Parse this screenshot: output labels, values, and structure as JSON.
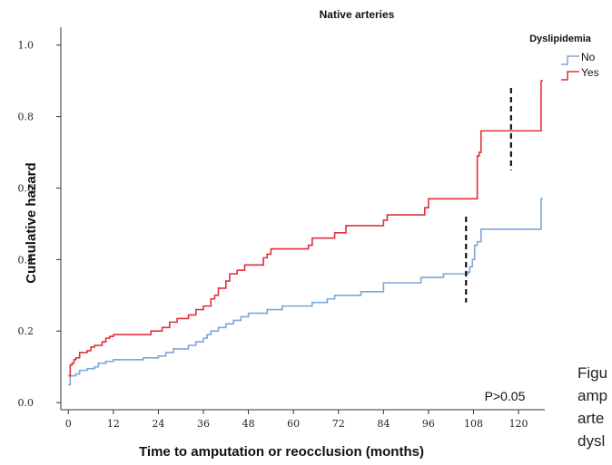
{
  "chart_data": {
    "type": "line",
    "title": "Native arteries",
    "xlabel": "Time to amputation or reocclusion (months)",
    "ylabel": "Cumulative hazard",
    "xlim": [
      -2,
      127
    ],
    "ylim": [
      -0.02,
      1.05
    ],
    "x_ticks": [
      0,
      12,
      24,
      36,
      48,
      60,
      72,
      84,
      96,
      108,
      120
    ],
    "y_ticks": [
      0.0,
      0.2,
      0.4,
      0.6,
      0.8,
      1.0
    ],
    "y_tick_labels": [
      "0.0",
      "0.2",
      "0.4",
      "0.6",
      "0.8",
      "1.0"
    ],
    "legend": {
      "title": "Dyslipidemia",
      "position": "top-right"
    },
    "annotation": "P>0.05",
    "grid": false,
    "series": [
      {
        "name": "No",
        "color": "#7ba7d9",
        "points": [
          [
            0,
            0.05
          ],
          [
            0.5,
            0.075
          ],
          [
            2,
            0.08
          ],
          [
            3,
            0.09
          ],
          [
            5,
            0.095
          ],
          [
            7,
            0.1
          ],
          [
            8,
            0.11
          ],
          [
            10,
            0.115
          ],
          [
            12,
            0.12
          ],
          [
            20,
            0.125
          ],
          [
            24,
            0.13
          ],
          [
            26,
            0.14
          ],
          [
            28,
            0.15
          ],
          [
            32,
            0.16
          ],
          [
            34,
            0.17
          ],
          [
            36,
            0.18
          ],
          [
            37,
            0.19
          ],
          [
            38,
            0.2
          ],
          [
            40,
            0.21
          ],
          [
            42,
            0.22
          ],
          [
            44,
            0.23
          ],
          [
            46,
            0.24
          ],
          [
            48,
            0.25
          ],
          [
            53,
            0.26
          ],
          [
            57,
            0.27
          ],
          [
            65,
            0.28
          ],
          [
            69,
            0.29
          ],
          [
            71,
            0.3
          ],
          [
            78,
            0.31
          ],
          [
            84,
            0.335
          ],
          [
            94,
            0.35
          ],
          [
            100,
            0.36
          ],
          [
            106.5,
            0.365
          ],
          [
            107,
            0.38
          ],
          [
            107.7,
            0.4
          ],
          [
            108.3,
            0.44
          ],
          [
            109,
            0.45
          ],
          [
            110,
            0.485
          ],
          [
            126,
            0.57
          ],
          [
            126.5,
            0.57
          ]
        ]
      },
      {
        "name": "Yes",
        "color": "#e0303a",
        "points": [
          [
            0,
            0.075
          ],
          [
            0.5,
            0.105
          ],
          [
            1,
            0.11
          ],
          [
            1.5,
            0.12
          ],
          [
            2,
            0.125
          ],
          [
            3,
            0.14
          ],
          [
            5,
            0.145
          ],
          [
            6,
            0.155
          ],
          [
            7,
            0.16
          ],
          [
            9,
            0.17
          ],
          [
            10,
            0.18
          ],
          [
            11,
            0.185
          ],
          [
            12,
            0.19
          ],
          [
            22,
            0.2
          ],
          [
            25,
            0.21
          ],
          [
            27,
            0.225
          ],
          [
            29,
            0.235
          ],
          [
            32,
            0.245
          ],
          [
            34,
            0.26
          ],
          [
            36,
            0.27
          ],
          [
            38,
            0.29
          ],
          [
            39,
            0.3
          ],
          [
            40,
            0.32
          ],
          [
            42,
            0.34
          ],
          [
            43,
            0.36
          ],
          [
            45,
            0.37
          ],
          [
            47,
            0.385
          ],
          [
            52,
            0.405
          ],
          [
            53,
            0.415
          ],
          [
            54,
            0.43
          ],
          [
            64,
            0.44
          ],
          [
            65,
            0.46
          ],
          [
            71,
            0.475
          ],
          [
            74,
            0.495
          ],
          [
            84,
            0.51
          ],
          [
            85,
            0.525
          ],
          [
            95,
            0.545
          ],
          [
            96,
            0.57
          ],
          [
            108.5,
            0.57
          ],
          [
            109,
            0.69
          ],
          [
            109.5,
            0.7
          ],
          [
            110,
            0.76
          ],
          [
            126,
            0.9
          ],
          [
            126.5,
            0.9
          ]
        ]
      }
    ],
    "censor_marks": [
      {
        "x": 118,
        "y_range": [
          0.65,
          0.88
        ]
      },
      {
        "x": 106,
        "y_range": [
          0.28,
          0.52
        ]
      }
    ]
  },
  "caption_lines": [
    "Figu",
    "amp",
    "arte",
    "dysl"
  ]
}
